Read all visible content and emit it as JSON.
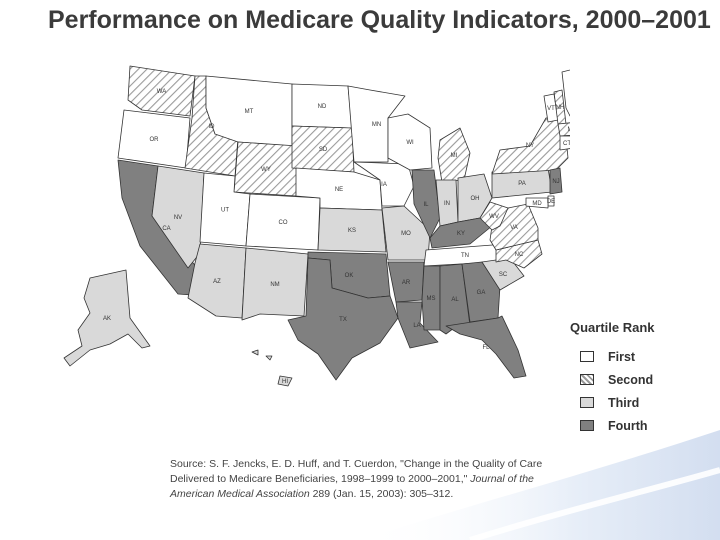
{
  "title": "Performance on Medicare Quality Indicators, 2000–2001",
  "legend": {
    "title": "Quartile Rank",
    "items": [
      {
        "label": "First",
        "fill": "#ffffff"
      },
      {
        "label": "Second",
        "fill": "hatch"
      },
      {
        "label": "Third",
        "fill": "#d9d9d9"
      },
      {
        "label": "Fourth",
        "fill": "#808080"
      }
    ]
  },
  "colors": {
    "first": "#ffffff",
    "third": "#d9d9d9",
    "fourth": "#808080",
    "hatch_line": "#9a9a9a",
    "outline": "#333333",
    "swoosh": "#dfe8f5"
  },
  "states": [
    {
      "abbr": "WA",
      "rank": "Second"
    },
    {
      "abbr": "OR",
      "rank": "First"
    },
    {
      "abbr": "CA",
      "rank": "Fourth"
    },
    {
      "abbr": "ID",
      "rank": "Second"
    },
    {
      "abbr": "NV",
      "rank": "Third"
    },
    {
      "abbr": "MT",
      "rank": "First"
    },
    {
      "abbr": "WY",
      "rank": "Second"
    },
    {
      "abbr": "UT",
      "rank": "First"
    },
    {
      "abbr": "CO",
      "rank": "First"
    },
    {
      "abbr": "AZ",
      "rank": "Third"
    },
    {
      "abbr": "NM",
      "rank": "Third"
    },
    {
      "abbr": "ND",
      "rank": "First"
    },
    {
      "abbr": "SD",
      "rank": "Second"
    },
    {
      "abbr": "NE",
      "rank": "First"
    },
    {
      "abbr": "KS",
      "rank": "Third"
    },
    {
      "abbr": "OK",
      "rank": "Fourth"
    },
    {
      "abbr": "TX",
      "rank": "Fourth"
    },
    {
      "abbr": "MN",
      "rank": "First"
    },
    {
      "abbr": "IA",
      "rank": "First"
    },
    {
      "abbr": "MO",
      "rank": "Third"
    },
    {
      "abbr": "AR",
      "rank": "Fourth"
    },
    {
      "abbr": "LA",
      "rank": "Fourth"
    },
    {
      "abbr": "WI",
      "rank": "First"
    },
    {
      "abbr": "IL",
      "rank": "Fourth"
    },
    {
      "abbr": "MI",
      "rank": "Second"
    },
    {
      "abbr": "IN",
      "rank": "Third"
    },
    {
      "abbr": "OH",
      "rank": "Third"
    },
    {
      "abbr": "KY",
      "rank": "Fourth"
    },
    {
      "abbr": "TN",
      "rank": "First"
    },
    {
      "abbr": "MS",
      "rank": "Fourth"
    },
    {
      "abbr": "AL",
      "rank": "Fourth"
    },
    {
      "abbr": "GA",
      "rank": "Fourth"
    },
    {
      "abbr": "FL",
      "rank": "Fourth"
    },
    {
      "abbr": "SC",
      "rank": "Third"
    },
    {
      "abbr": "NC",
      "rank": "Second"
    },
    {
      "abbr": "VA",
      "rank": "Second"
    },
    {
      "abbr": "WV",
      "rank": "Second"
    },
    {
      "abbr": "PA",
      "rank": "Third"
    },
    {
      "abbr": "NY",
      "rank": "Second"
    },
    {
      "abbr": "VT",
      "rank": "First"
    },
    {
      "abbr": "NH",
      "rank": "Second"
    },
    {
      "abbr": "ME",
      "rank": "First"
    },
    {
      "abbr": "MA",
      "rank": "Second"
    },
    {
      "abbr": "RI",
      "rank": "First"
    },
    {
      "abbr": "CT",
      "rank": "First"
    },
    {
      "abbr": "NJ",
      "rank": "Fourth"
    },
    {
      "abbr": "DE",
      "rank": "First"
    },
    {
      "abbr": "MD",
      "rank": "First"
    },
    {
      "abbr": "DC",
      "rank": "Third"
    },
    {
      "abbr": "AK",
      "rank": "Third"
    },
    {
      "abbr": "HI",
      "rank": "Third"
    }
  ],
  "source": {
    "line1": "Source: S. F. Jencks, E. D. Huff, and T. Cuerdon, \"Change in the Quality of Care",
    "line2_plain": "Delivered to Medicare Beneficiaries, 1998–1999 to 2000–2001,\" ",
    "line2_italic": "Journal of the",
    "line3_italic": "American Medical Association",
    "line3_plain": " 289 (Jan. 15, 2003): 305–312."
  }
}
